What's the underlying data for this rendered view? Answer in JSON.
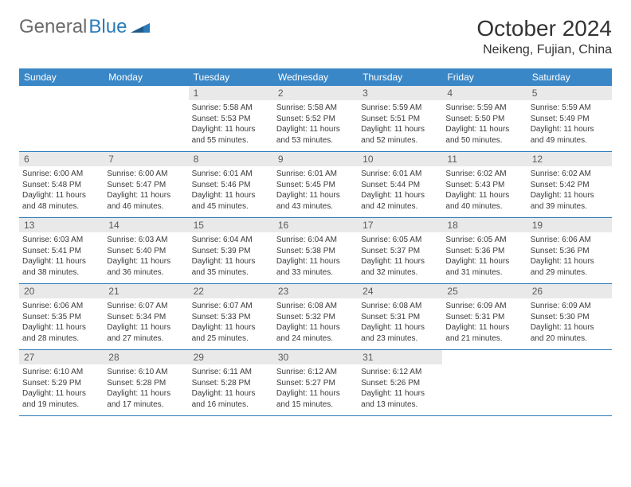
{
  "logo": {
    "text1": "General",
    "text2": "Blue"
  },
  "title": "October 2024",
  "location": "Neikeng, Fujian, China",
  "colors": {
    "header_bg": "#3a87c7",
    "row_border": "#2b7bb9",
    "daynum_bg": "#e9e9e9",
    "text": "#333333",
    "logo_gray": "#6b6b6b",
    "logo_blue": "#2b7bb9"
  },
  "weekdays": [
    "Sunday",
    "Monday",
    "Tuesday",
    "Wednesday",
    "Thursday",
    "Friday",
    "Saturday"
  ],
  "weeks": [
    [
      null,
      null,
      {
        "n": "1",
        "sr": "Sunrise: 5:58 AM",
        "ss": "Sunset: 5:53 PM",
        "d1": "Daylight: 11 hours",
        "d2": "and 55 minutes."
      },
      {
        "n": "2",
        "sr": "Sunrise: 5:58 AM",
        "ss": "Sunset: 5:52 PM",
        "d1": "Daylight: 11 hours",
        "d2": "and 53 minutes."
      },
      {
        "n": "3",
        "sr": "Sunrise: 5:59 AM",
        "ss": "Sunset: 5:51 PM",
        "d1": "Daylight: 11 hours",
        "d2": "and 52 minutes."
      },
      {
        "n": "4",
        "sr": "Sunrise: 5:59 AM",
        "ss": "Sunset: 5:50 PM",
        "d1": "Daylight: 11 hours",
        "d2": "and 50 minutes."
      },
      {
        "n": "5",
        "sr": "Sunrise: 5:59 AM",
        "ss": "Sunset: 5:49 PM",
        "d1": "Daylight: 11 hours",
        "d2": "and 49 minutes."
      }
    ],
    [
      {
        "n": "6",
        "sr": "Sunrise: 6:00 AM",
        "ss": "Sunset: 5:48 PM",
        "d1": "Daylight: 11 hours",
        "d2": "and 48 minutes."
      },
      {
        "n": "7",
        "sr": "Sunrise: 6:00 AM",
        "ss": "Sunset: 5:47 PM",
        "d1": "Daylight: 11 hours",
        "d2": "and 46 minutes."
      },
      {
        "n": "8",
        "sr": "Sunrise: 6:01 AM",
        "ss": "Sunset: 5:46 PM",
        "d1": "Daylight: 11 hours",
        "d2": "and 45 minutes."
      },
      {
        "n": "9",
        "sr": "Sunrise: 6:01 AM",
        "ss": "Sunset: 5:45 PM",
        "d1": "Daylight: 11 hours",
        "d2": "and 43 minutes."
      },
      {
        "n": "10",
        "sr": "Sunrise: 6:01 AM",
        "ss": "Sunset: 5:44 PM",
        "d1": "Daylight: 11 hours",
        "d2": "and 42 minutes."
      },
      {
        "n": "11",
        "sr": "Sunrise: 6:02 AM",
        "ss": "Sunset: 5:43 PM",
        "d1": "Daylight: 11 hours",
        "d2": "and 40 minutes."
      },
      {
        "n": "12",
        "sr": "Sunrise: 6:02 AM",
        "ss": "Sunset: 5:42 PM",
        "d1": "Daylight: 11 hours",
        "d2": "and 39 minutes."
      }
    ],
    [
      {
        "n": "13",
        "sr": "Sunrise: 6:03 AM",
        "ss": "Sunset: 5:41 PM",
        "d1": "Daylight: 11 hours",
        "d2": "and 38 minutes."
      },
      {
        "n": "14",
        "sr": "Sunrise: 6:03 AM",
        "ss": "Sunset: 5:40 PM",
        "d1": "Daylight: 11 hours",
        "d2": "and 36 minutes."
      },
      {
        "n": "15",
        "sr": "Sunrise: 6:04 AM",
        "ss": "Sunset: 5:39 PM",
        "d1": "Daylight: 11 hours",
        "d2": "and 35 minutes."
      },
      {
        "n": "16",
        "sr": "Sunrise: 6:04 AM",
        "ss": "Sunset: 5:38 PM",
        "d1": "Daylight: 11 hours",
        "d2": "and 33 minutes."
      },
      {
        "n": "17",
        "sr": "Sunrise: 6:05 AM",
        "ss": "Sunset: 5:37 PM",
        "d1": "Daylight: 11 hours",
        "d2": "and 32 minutes."
      },
      {
        "n": "18",
        "sr": "Sunrise: 6:05 AM",
        "ss": "Sunset: 5:36 PM",
        "d1": "Daylight: 11 hours",
        "d2": "and 31 minutes."
      },
      {
        "n": "19",
        "sr": "Sunrise: 6:06 AM",
        "ss": "Sunset: 5:36 PM",
        "d1": "Daylight: 11 hours",
        "d2": "and 29 minutes."
      }
    ],
    [
      {
        "n": "20",
        "sr": "Sunrise: 6:06 AM",
        "ss": "Sunset: 5:35 PM",
        "d1": "Daylight: 11 hours",
        "d2": "and 28 minutes."
      },
      {
        "n": "21",
        "sr": "Sunrise: 6:07 AM",
        "ss": "Sunset: 5:34 PM",
        "d1": "Daylight: 11 hours",
        "d2": "and 27 minutes."
      },
      {
        "n": "22",
        "sr": "Sunrise: 6:07 AM",
        "ss": "Sunset: 5:33 PM",
        "d1": "Daylight: 11 hours",
        "d2": "and 25 minutes."
      },
      {
        "n": "23",
        "sr": "Sunrise: 6:08 AM",
        "ss": "Sunset: 5:32 PM",
        "d1": "Daylight: 11 hours",
        "d2": "and 24 minutes."
      },
      {
        "n": "24",
        "sr": "Sunrise: 6:08 AM",
        "ss": "Sunset: 5:31 PM",
        "d1": "Daylight: 11 hours",
        "d2": "and 23 minutes."
      },
      {
        "n": "25",
        "sr": "Sunrise: 6:09 AM",
        "ss": "Sunset: 5:31 PM",
        "d1": "Daylight: 11 hours",
        "d2": "and 21 minutes."
      },
      {
        "n": "26",
        "sr": "Sunrise: 6:09 AM",
        "ss": "Sunset: 5:30 PM",
        "d1": "Daylight: 11 hours",
        "d2": "and 20 minutes."
      }
    ],
    [
      {
        "n": "27",
        "sr": "Sunrise: 6:10 AM",
        "ss": "Sunset: 5:29 PM",
        "d1": "Daylight: 11 hours",
        "d2": "and 19 minutes."
      },
      {
        "n": "28",
        "sr": "Sunrise: 6:10 AM",
        "ss": "Sunset: 5:28 PM",
        "d1": "Daylight: 11 hours",
        "d2": "and 17 minutes."
      },
      {
        "n": "29",
        "sr": "Sunrise: 6:11 AM",
        "ss": "Sunset: 5:28 PM",
        "d1": "Daylight: 11 hours",
        "d2": "and 16 minutes."
      },
      {
        "n": "30",
        "sr": "Sunrise: 6:12 AM",
        "ss": "Sunset: 5:27 PM",
        "d1": "Daylight: 11 hours",
        "d2": "and 15 minutes."
      },
      {
        "n": "31",
        "sr": "Sunrise: 6:12 AM",
        "ss": "Sunset: 5:26 PM",
        "d1": "Daylight: 11 hours",
        "d2": "and 13 minutes."
      },
      null,
      null
    ]
  ]
}
